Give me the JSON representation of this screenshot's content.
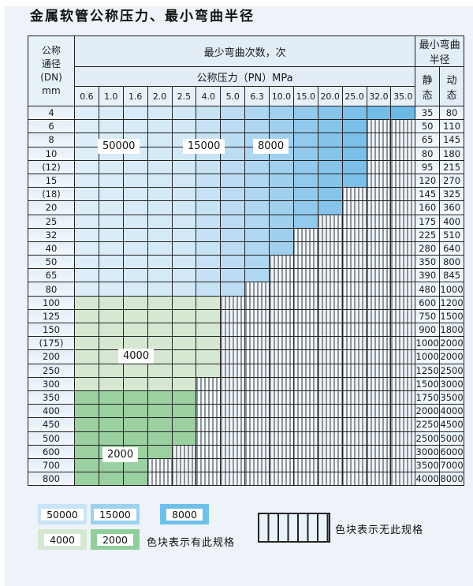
{
  "title": "金属软管公称压力、最小弯曲半径",
  "table": {
    "header": {
      "dn_label": "公称\n通径\n(DN)\nmm",
      "cycles_label": "最少弯曲次数，次",
      "pressure_label": "公称压力（PN）MPa",
      "pressure_columns": [
        "0.6",
        "1.0",
        "1.6",
        "2.0",
        "2.5",
        "4.0",
        "5.0",
        "6.3",
        "10.0",
        "15.0",
        "20.0",
        "25.0",
        "32.0",
        "35.0"
      ],
      "radius_label": "最小弯曲半径",
      "static_label": "静 态",
      "dynamic_label": "动 态"
    },
    "zone_labels": [
      "50000",
      "15000",
      "8000",
      "4000",
      "2000"
    ],
    "rows": [
      {
        "dn": "4",
        "zone": "blue",
        "colored_through": "35.0",
        "static": "35",
        "dynamic": "80"
      },
      {
        "dn": "6",
        "zone": "blue",
        "colored_through": "25.0",
        "static": "50",
        "dynamic": "110"
      },
      {
        "dn": "8",
        "zone": "blue",
        "colored_through": "25.0",
        "static": "65",
        "dynamic": "145"
      },
      {
        "dn": "10",
        "zone": "blue",
        "colored_through": "25.0",
        "static": "80",
        "dynamic": "180"
      },
      {
        "dn": "(12)",
        "zone": "blue",
        "colored_through": "25.0",
        "static": "95",
        "dynamic": "215"
      },
      {
        "dn": "15",
        "zone": "blue",
        "colored_through": "25.0",
        "static": "120",
        "dynamic": "270"
      },
      {
        "dn": "(18)",
        "zone": "blue",
        "colored_through": "20.0",
        "static": "145",
        "dynamic": "325"
      },
      {
        "dn": "20",
        "zone": "blue",
        "colored_through": "20.0",
        "static": "160",
        "dynamic": "360"
      },
      {
        "dn": "25",
        "zone": "blue",
        "colored_through": "15.0",
        "static": "175",
        "dynamic": "400"
      },
      {
        "dn": "32",
        "zone": "blue",
        "colored_through": "10.0",
        "static": "225",
        "dynamic": "510"
      },
      {
        "dn": "40",
        "zone": "blue",
        "colored_through": "10.0",
        "static": "280",
        "dynamic": "640"
      },
      {
        "dn": "50",
        "zone": "blue",
        "colored_through": "6.3",
        "static": "350",
        "dynamic": "800"
      },
      {
        "dn": "65",
        "zone": "blue",
        "colored_through": "6.3",
        "static": "390",
        "dynamic": "845"
      },
      {
        "dn": "80",
        "zone": "blue",
        "colored_through": "5.0",
        "static": "480",
        "dynamic": "1000"
      },
      {
        "dn": "100",
        "zone": "green-light",
        "colored_through": "4.0",
        "static": "600",
        "dynamic": "1200"
      },
      {
        "dn": "125",
        "zone": "green-light",
        "colored_through": "4.0",
        "static": "750",
        "dynamic": "1500"
      },
      {
        "dn": "150",
        "zone": "green-light",
        "colored_through": "4.0",
        "static": "900",
        "dynamic": "1800"
      },
      {
        "dn": "(175)",
        "zone": "green-light",
        "colored_through": "4.0",
        "static": "1000",
        "dynamic": "2000"
      },
      {
        "dn": "200",
        "zone": "green-light",
        "colored_through": "4.0",
        "static": "1000",
        "dynamic": "2000"
      },
      {
        "dn": "250",
        "zone": "green-light",
        "colored_through": "4.0",
        "static": "1250",
        "dynamic": "2500"
      },
      {
        "dn": "300",
        "zone": "green-light",
        "colored_through": "2.5",
        "static": "1500",
        "dynamic": "3000"
      },
      {
        "dn": "350",
        "zone": "green-dark",
        "colored_through": "2.5",
        "static": "1750",
        "dynamic": "3500"
      },
      {
        "dn": "400",
        "zone": "green-dark",
        "colored_through": "2.5",
        "static": "2000",
        "dynamic": "4000"
      },
      {
        "dn": "450",
        "zone": "green-dark",
        "colored_through": "2.5",
        "static": "2250",
        "dynamic": "4500"
      },
      {
        "dn": "500",
        "zone": "green-dark",
        "colored_through": "2.5",
        "static": "2500",
        "dynamic": "5000"
      },
      {
        "dn": "600",
        "zone": "green-dark",
        "colored_through": "2.0",
        "static": "3000",
        "dynamic": "6000"
      },
      {
        "dn": "700",
        "zone": "green-dark",
        "colored_through": "1.6",
        "static": "3500",
        "dynamic": "7000"
      },
      {
        "dn": "800",
        "zone": "green-dark",
        "colored_through": "1.6",
        "static": "4000",
        "dynamic": "8000"
      }
    ]
  },
  "legend": {
    "items": [
      {
        "label": "50000",
        "color": "#c9e4f6"
      },
      {
        "label": "15000",
        "color": "#9dd2ef"
      },
      {
        "label": "8000",
        "color": "#6fc0e8"
      },
      {
        "label": "4000",
        "color": "#d5e8d2"
      },
      {
        "label": "2000",
        "color": "#90cf9a"
      }
    ],
    "has_spec_note": "色块表示有此规格",
    "no_spec_note": "色块表示无此规格"
  },
  "colors": {
    "blue_columns": [
      "#ddeef9",
      "#daecf8",
      "#d8ebf8",
      "#d5eaf7",
      "#d2e8f7",
      "#c7e2f5",
      "#bbdcf3",
      "#afd7f1",
      "#a1d0ee",
      "#93c9ec",
      "#86c4ea",
      "#7cc0e9",
      "#73bce7",
      "#6db9e6"
    ],
    "green_light": "#d6e8d2",
    "green_dark": "#9bd0a1",
    "hatch_bg": "#eef5fb"
  }
}
